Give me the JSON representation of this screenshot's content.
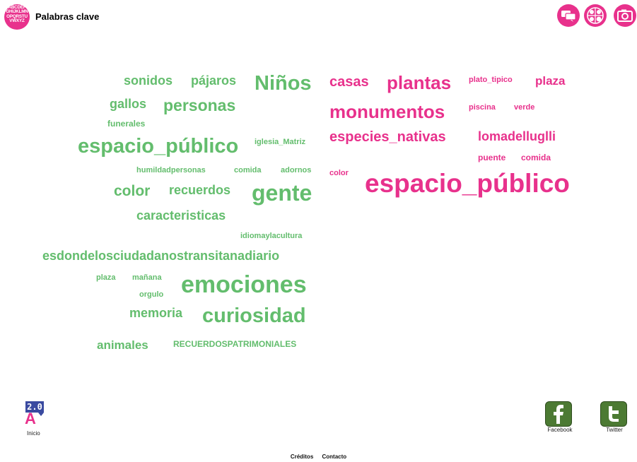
{
  "header": {
    "logo_text": "ABCDEF GHIJKLMN OPQRSTU VWXYZ",
    "title": "Palabras clave",
    "icons": [
      "chat-icon",
      "people-network-icon",
      "camera-icon"
    ]
  },
  "cloud_left": {
    "color": "#63bd6d",
    "words": [
      "sonidos",
      "pájaros",
      "Niños",
      "gallos",
      "personas",
      "funerales",
      "espacio_público",
      "iglesia_Matriz",
      "humildadpersonas",
      "comida",
      "adornos",
      "color",
      "recuerdos",
      "gente",
      "caracteristicas",
      "idiomaylacultura",
      "esdondelosciudadanostransitanadiario",
      "plaza",
      "mañana",
      "orgulo",
      "emociones",
      "memoria",
      "curiosidad",
      "animales",
      "RECUERDOSPATRIMONIALES"
    ]
  },
  "cloud_right": {
    "color": "#e8318c",
    "words": [
      "casas",
      "plantas",
      "plato_tipico",
      "plaza",
      "monumentos",
      "piscina",
      "verde",
      "especies_nativas",
      "lomadelluglli",
      "puente",
      "comida",
      "color",
      "espacio_público"
    ]
  },
  "footer": {
    "badge_text": "2.0",
    "badge_letter": "A",
    "inicio": "Inicio",
    "facebook": "Facebook",
    "twitter": "Twitter",
    "links": [
      "Créditos",
      "Contacto"
    ]
  }
}
